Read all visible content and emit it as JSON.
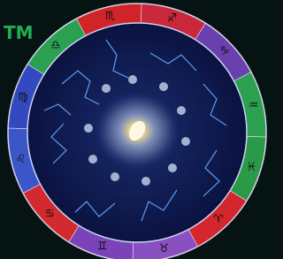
{
  "trademark": "TM",
  "signs": [
    "♏",
    "♐",
    "♑",
    "♒",
    "♓",
    "♈",
    "♉",
    "♊",
    "♋",
    "♌",
    "♍",
    "♎"
  ]
}
